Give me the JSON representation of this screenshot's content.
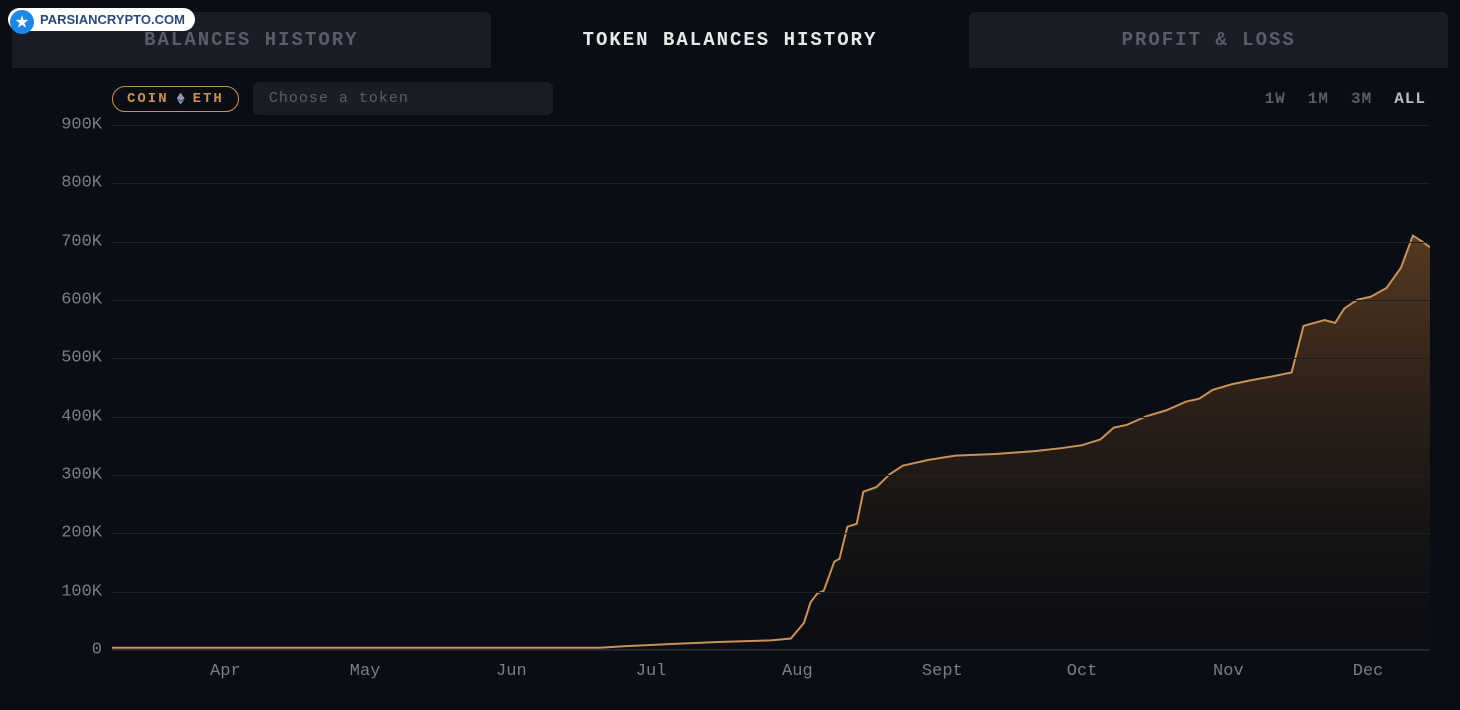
{
  "watermark": {
    "text": "PARSIANCRYPTO.COM"
  },
  "tabs": [
    {
      "label": "BALANCES HISTORY",
      "active": false
    },
    {
      "label": "TOKEN BALANCES HISTORY",
      "active": true
    },
    {
      "label": "PROFIT & LOSS",
      "active": false
    }
  ],
  "controls": {
    "coin_label": "COIN",
    "coin_symbol": "ETH",
    "token_placeholder": "Choose a token",
    "ranges": [
      {
        "label": "1W",
        "active": false
      },
      {
        "label": "1M",
        "active": false
      },
      {
        "label": "3M",
        "active": false
      },
      {
        "label": "ALL",
        "active": true
      }
    ]
  },
  "chart": {
    "type": "area",
    "background_color": "#0a0d14",
    "grid_color": "#1e212a",
    "axis_text_color": "#7a7d88",
    "line_color": "#c9915a",
    "line_width": 2,
    "fill_gradient_top": "rgba(150,95,45,0.55)",
    "fill_gradient_bottom": "rgba(60,35,15,0.02)",
    "ylim": [
      0,
      900000
    ],
    "ytick_step": 100000,
    "y_ticks": [
      {
        "v": 0,
        "label": "0"
      },
      {
        "v": 100000,
        "label": "100K"
      },
      {
        "v": 200000,
        "label": "200K"
      },
      {
        "v": 300000,
        "label": "300K"
      },
      {
        "v": 400000,
        "label": "400K"
      },
      {
        "v": 500000,
        "label": "500K"
      },
      {
        "v": 600000,
        "label": "600K"
      },
      {
        "v": 700000,
        "label": "700K"
      },
      {
        "v": 800000,
        "label": "800K"
      },
      {
        "v": 900000,
        "label": "900K"
      }
    ],
    "x_ticks": [
      {
        "x": 0.086,
        "label": "Apr"
      },
      {
        "x": 0.192,
        "label": "May"
      },
      {
        "x": 0.303,
        "label": "Jun"
      },
      {
        "x": 0.409,
        "label": "Jul"
      },
      {
        "x": 0.52,
        "label": "Aug"
      },
      {
        "x": 0.63,
        "label": "Sept"
      },
      {
        "x": 0.736,
        "label": "Oct"
      },
      {
        "x": 0.847,
        "label": "Nov"
      },
      {
        "x": 0.953,
        "label": "Dec"
      }
    ],
    "series": [
      {
        "x": 0.0,
        "y": 2000
      },
      {
        "x": 0.05,
        "y": 2000
      },
      {
        "x": 0.1,
        "y": 2000
      },
      {
        "x": 0.2,
        "y": 2000
      },
      {
        "x": 0.3,
        "y": 2000
      },
      {
        "x": 0.37,
        "y": 2000
      },
      {
        "x": 0.39,
        "y": 5000
      },
      {
        "x": 0.42,
        "y": 8000
      },
      {
        "x": 0.46,
        "y": 12000
      },
      {
        "x": 0.5,
        "y": 15000
      },
      {
        "x": 0.515,
        "y": 18000
      },
      {
        "x": 0.525,
        "y": 45000
      },
      {
        "x": 0.53,
        "y": 80000
      },
      {
        "x": 0.535,
        "y": 95000
      },
      {
        "x": 0.54,
        "y": 100000
      },
      {
        "x": 0.548,
        "y": 150000
      },
      {
        "x": 0.552,
        "y": 155000
      },
      {
        "x": 0.558,
        "y": 210000
      },
      {
        "x": 0.565,
        "y": 215000
      },
      {
        "x": 0.57,
        "y": 270000
      },
      {
        "x": 0.58,
        "y": 278000
      },
      {
        "x": 0.59,
        "y": 300000
      },
      {
        "x": 0.6,
        "y": 315000
      },
      {
        "x": 0.62,
        "y": 325000
      },
      {
        "x": 0.64,
        "y": 332000
      },
      {
        "x": 0.67,
        "y": 335000
      },
      {
        "x": 0.7,
        "y": 340000
      },
      {
        "x": 0.72,
        "y": 345000
      },
      {
        "x": 0.736,
        "y": 350000
      },
      {
        "x": 0.75,
        "y": 360000
      },
      {
        "x": 0.76,
        "y": 380000
      },
      {
        "x": 0.77,
        "y": 385000
      },
      {
        "x": 0.785,
        "y": 400000
      },
      {
        "x": 0.8,
        "y": 410000
      },
      {
        "x": 0.815,
        "y": 425000
      },
      {
        "x": 0.825,
        "y": 430000
      },
      {
        "x": 0.835,
        "y": 445000
      },
      {
        "x": 0.85,
        "y": 455000
      },
      {
        "x": 0.865,
        "y": 462000
      },
      {
        "x": 0.88,
        "y": 468000
      },
      {
        "x": 0.895,
        "y": 475000
      },
      {
        "x": 0.904,
        "y": 555000
      },
      {
        "x": 0.912,
        "y": 560000
      },
      {
        "x": 0.92,
        "y": 565000
      },
      {
        "x": 0.928,
        "y": 560000
      },
      {
        "x": 0.935,
        "y": 585000
      },
      {
        "x": 0.945,
        "y": 600000
      },
      {
        "x": 0.955,
        "y": 605000
      },
      {
        "x": 0.967,
        "y": 620000
      },
      {
        "x": 0.978,
        "y": 655000
      },
      {
        "x": 0.987,
        "y": 710000
      },
      {
        "x": 0.994,
        "y": 700000
      },
      {
        "x": 1.0,
        "y": 690000
      }
    ]
  }
}
